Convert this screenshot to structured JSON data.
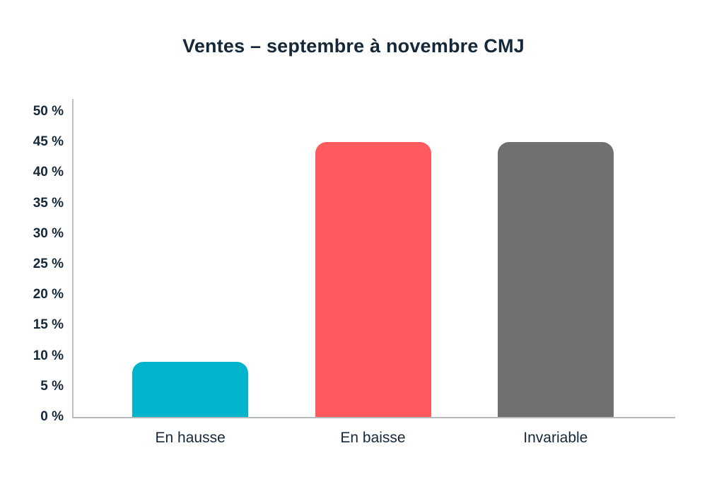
{
  "page": {
    "background": "#ffffff"
  },
  "chart_data": {
    "type": "bar",
    "title": "Ventes – septembre à novembre CMJ",
    "categories": [
      "En hausse",
      "En baisse",
      "Invariable"
    ],
    "values": [
      9,
      45,
      45
    ],
    "colors": [
      "#00B4CB",
      "#FF5A5E",
      "#6F7170"
    ],
    "ylim": [
      0,
      50
    ],
    "ytick_step": 5,
    "ytick_labels": [
      "0 %",
      "5 %",
      "10 %",
      "15 %",
      "20 %",
      "25 %",
      "30 %",
      "35 %",
      "40 %",
      "45 %",
      "50 %"
    ],
    "ytick_values": [
      0,
      5,
      10,
      15,
      20,
      25,
      30,
      35,
      40,
      45,
      50
    ],
    "xlabel": "",
    "ylabel": "",
    "grid": false,
    "legend": "none",
    "axis_color": "#BDC1C1",
    "text_color": "#152839"
  }
}
